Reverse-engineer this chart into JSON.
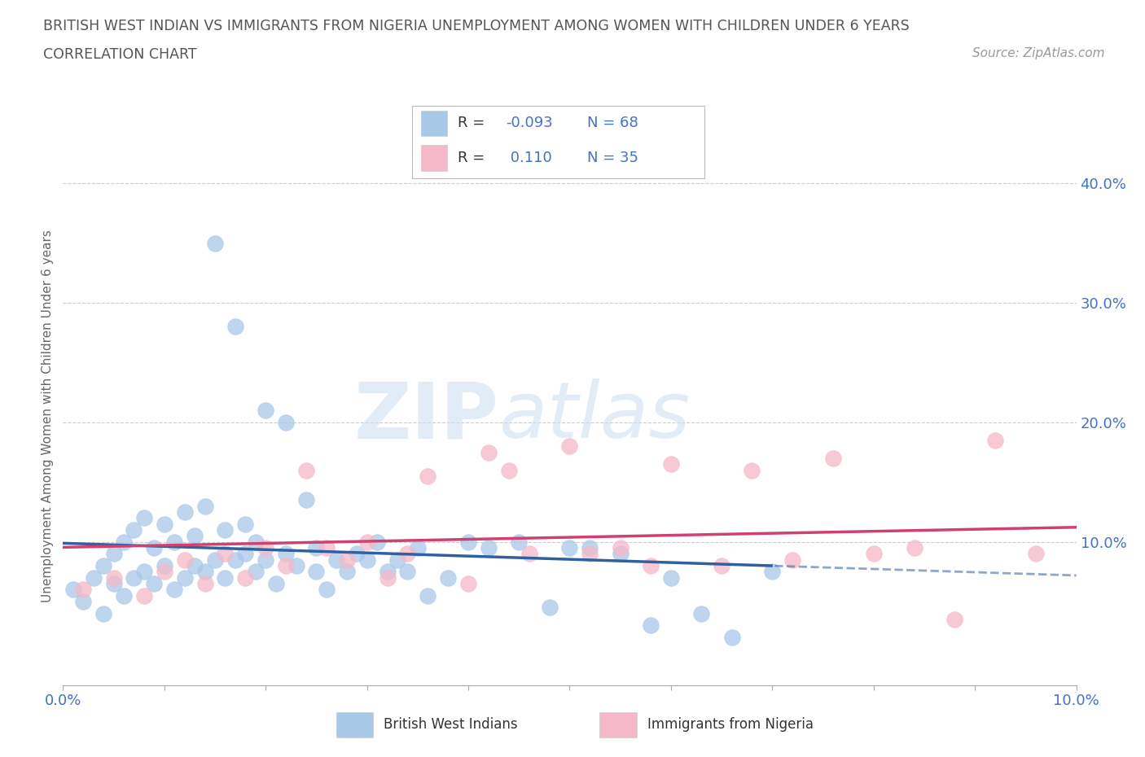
{
  "title_line1": "BRITISH WEST INDIAN VS IMMIGRANTS FROM NIGERIA UNEMPLOYMENT AMONG WOMEN WITH CHILDREN UNDER 6 YEARS",
  "title_line2": "CORRELATION CHART",
  "source": "Source: ZipAtlas.com",
  "ylabel": "Unemployment Among Women with Children Under 6 years",
  "xlim": [
    0.0,
    0.1
  ],
  "ylim": [
    -0.02,
    0.43
  ],
  "yticks_right": [
    0.1,
    0.2,
    0.3,
    0.4
  ],
  "ytick_labels_right": [
    "10.0%",
    "20.0%",
    "30.0%",
    "40.0%"
  ],
  "blue_color": "#a8c8e8",
  "pink_color": "#f4b8c8",
  "blue_line_color": "#3060a0",
  "pink_line_color": "#d04070",
  "R_blue": -0.093,
  "N_blue": 68,
  "R_pink": 0.11,
  "N_pink": 35,
  "watermark_zip": "ZIP",
  "watermark_atlas": "atlas",
  "background_color": "#ffffff",
  "grid_color": "#cccccc",
  "blue_scatter_x": [
    0.001,
    0.002,
    0.003,
    0.004,
    0.004,
    0.005,
    0.005,
    0.006,
    0.006,
    0.007,
    0.007,
    0.008,
    0.008,
    0.009,
    0.009,
    0.01,
    0.01,
    0.011,
    0.011,
    0.012,
    0.012,
    0.013,
    0.013,
    0.014,
    0.014,
    0.015,
    0.015,
    0.016,
    0.016,
    0.017,
    0.017,
    0.018,
    0.018,
    0.019,
    0.019,
    0.02,
    0.02,
    0.021,
    0.022,
    0.022,
    0.023,
    0.024,
    0.025,
    0.025,
    0.026,
    0.027,
    0.028,
    0.029,
    0.03,
    0.031,
    0.032,
    0.033,
    0.034,
    0.035,
    0.036,
    0.038,
    0.04,
    0.042,
    0.045,
    0.048,
    0.05,
    0.052,
    0.055,
    0.058,
    0.06,
    0.063,
    0.066,
    0.07
  ],
  "blue_scatter_y": [
    0.06,
    0.05,
    0.07,
    0.04,
    0.08,
    0.065,
    0.09,
    0.055,
    0.1,
    0.07,
    0.11,
    0.075,
    0.12,
    0.065,
    0.095,
    0.08,
    0.115,
    0.06,
    0.1,
    0.07,
    0.125,
    0.08,
    0.105,
    0.075,
    0.13,
    0.085,
    0.35,
    0.07,
    0.11,
    0.085,
    0.28,
    0.09,
    0.115,
    0.075,
    0.1,
    0.085,
    0.21,
    0.065,
    0.2,
    0.09,
    0.08,
    0.135,
    0.075,
    0.095,
    0.06,
    0.085,
    0.075,
    0.09,
    0.085,
    0.1,
    0.075,
    0.085,
    0.075,
    0.095,
    0.055,
    0.07,
    0.1,
    0.095,
    0.1,
    0.045,
    0.095,
    0.095,
    0.09,
    0.03,
    0.07,
    0.04,
    0.02,
    0.075
  ],
  "pink_scatter_x": [
    0.002,
    0.005,
    0.008,
    0.01,
    0.012,
    0.014,
    0.016,
    0.018,
    0.02,
    0.022,
    0.024,
    0.026,
    0.028,
    0.03,
    0.032,
    0.034,
    0.036,
    0.04,
    0.042,
    0.044,
    0.046,
    0.05,
    0.052,
    0.055,
    0.058,
    0.06,
    0.065,
    0.068,
    0.072,
    0.076,
    0.08,
    0.084,
    0.088,
    0.092,
    0.096
  ],
  "pink_scatter_y": [
    0.06,
    0.07,
    0.055,
    0.075,
    0.085,
    0.065,
    0.09,
    0.07,
    0.095,
    0.08,
    0.16,
    0.095,
    0.085,
    0.1,
    0.07,
    0.09,
    0.155,
    0.065,
    0.175,
    0.16,
    0.09,
    0.18,
    0.09,
    0.095,
    0.08,
    0.165,
    0.08,
    0.16,
    0.085,
    0.17,
    0.09,
    0.095,
    0.035,
    0.185,
    0.09
  ]
}
